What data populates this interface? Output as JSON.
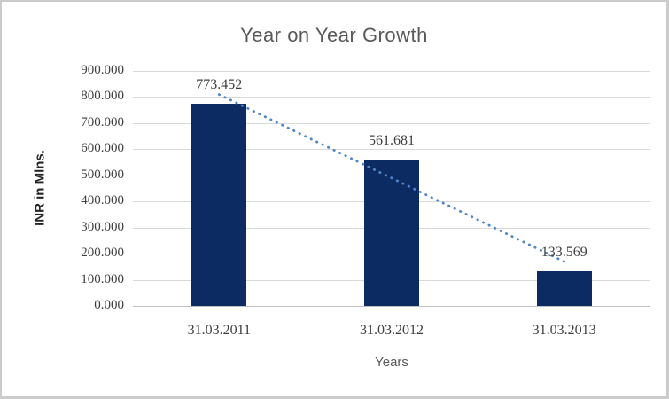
{
  "chart_data": {
    "type": "bar",
    "title": "Year on Year Growth",
    "xlabel": "Years",
    "ylabel": "INR in Mlns.",
    "categories": [
      "31.03.2011",
      "31.03.2012",
      "31.03.2013"
    ],
    "values": [
      773.452,
      561.681,
      133.569
    ],
    "data_labels": [
      "773.452",
      "561.681",
      "133.569"
    ],
    "yticks": [
      "900.000",
      "800.000",
      "700.000",
      "600.000",
      "500.000",
      "400.000",
      "300.000",
      "200.000",
      "100.000",
      "0.000"
    ],
    "ylim": [
      0,
      900
    ],
    "ytick_step": 100,
    "grid": "horizontal",
    "legend": "none",
    "trendline": {
      "type": "linear",
      "style": "dotted"
    },
    "colors": {
      "bar": "#0d2b63",
      "trendline": "#4e86c8",
      "gridline": "#d9d9d9",
      "axis_line": "#bfbfbf",
      "tick_label": "#3f3f3f",
      "data_label": "#3f3f3f",
      "title": "#595959",
      "axis_title": "#595959",
      "y_axis_title": "#262626",
      "frame_border": "#cbcbcb",
      "background": "#ffffff"
    }
  }
}
